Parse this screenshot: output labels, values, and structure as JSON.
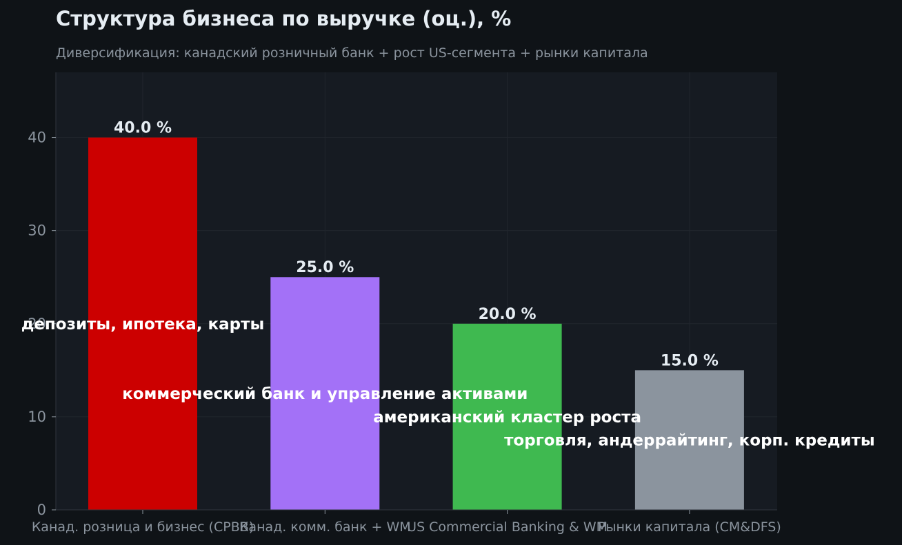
{
  "chart_data": {
    "type": "bar",
    "title": "Структура бизнеса по выручке (оц.), %",
    "subtitle": "Диверсификация: канадский розничный банк + рост US-сегмента + рынки капитала",
    "categories": [
      "Канад. розница и бизнес (CPBB)",
      "Канад. комм. банк + WM",
      "US Commercial Banking & WM",
      "Рынки капитала (CM&DFS)"
    ],
    "values": [
      40.0,
      25.0,
      20.0,
      15.0
    ],
    "value_labels": [
      "40.0 %",
      "25.0 %",
      "20.0 %",
      "15.0 %"
    ],
    "colors": [
      "#cc0000",
      "#a371f7",
      "#3fb950",
      "#8b949e"
    ],
    "annotations": [
      {
        "text": "депозиты, ипотека, карты",
        "y": 20
      },
      {
        "text": "коммерческий банк и управление активами",
        "y": 12.5
      },
      {
        "text": "американский кластер роста",
        "y": 10
      },
      {
        "text": "торговля, андеррайтинг, корп. кредиты",
        "y": 7.5
      }
    ],
    "yticks": [
      0,
      10,
      20,
      30,
      40
    ],
    "ylim": [
      0,
      47
    ],
    "grid": true,
    "xlabel": "",
    "ylabel": ""
  }
}
